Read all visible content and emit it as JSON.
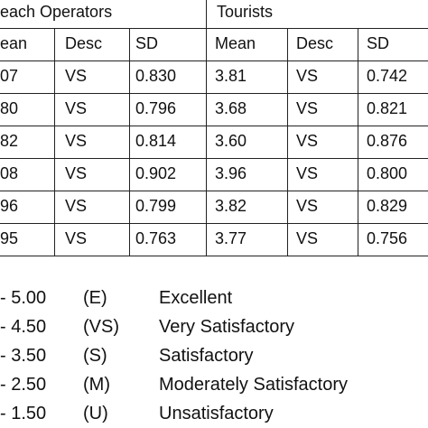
{
  "table": {
    "group_left": "each Operators",
    "group_right": "Tourists",
    "sub_headers": [
      "ean",
      "Desc",
      "SD",
      "Mean",
      "Desc",
      "SD"
    ],
    "rows": [
      [
        "07",
        "VS",
        "0.830",
        "3.81",
        "VS",
        "0.742"
      ],
      [
        "80",
        "VS",
        "0.796",
        "3.68",
        "VS",
        "0.821"
      ],
      [
        "82",
        "VS",
        "0.814",
        "3.60",
        "VS",
        "0.876"
      ],
      [
        "08",
        "VS",
        "0.902",
        "3.96",
        "VS",
        "0.800"
      ],
      [
        "96",
        "VS",
        "0.799",
        "3.82",
        "VS",
        "0.829"
      ],
      [
        "95",
        "VS",
        "0.763",
        "3.77",
        "VS",
        "0.756"
      ]
    ]
  },
  "legend": [
    {
      "range": "- 5.00",
      "code": "(E)",
      "meaning": "Excellent"
    },
    {
      "range": "- 4.50",
      "code": "(VS)",
      "meaning": "Very Satisfactory"
    },
    {
      "range": "- 3.50",
      "code": "(S)",
      "meaning": "Satisfactory"
    },
    {
      "range": "- 2.50",
      "code": "(M)",
      "meaning": "Moderately Satisfactory"
    },
    {
      "range": "- 1.50",
      "code": "(U)",
      "meaning": "Unsatisfactory"
    }
  ]
}
